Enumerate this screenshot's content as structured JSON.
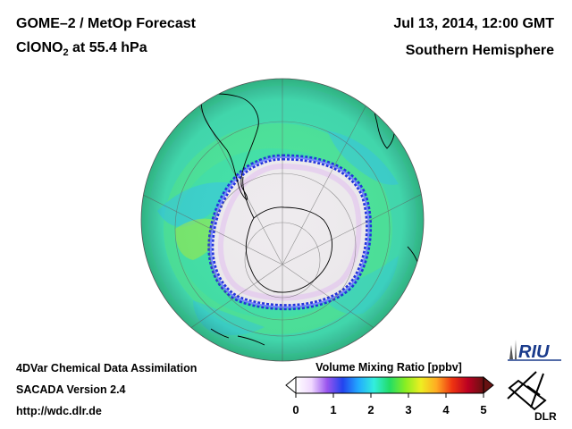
{
  "header": {
    "product": "GOME–2 / MetOp Forecast",
    "species": "ClONO",
    "species_subscript": "2",
    "level": " at 55.4 hPa",
    "datetime": "Jul 13, 2014, 12:00 GMT",
    "region": "Southern Hemisphere"
  },
  "footer": {
    "line1": "4DVar Chemical Data Assimilation",
    "line2": "SACADA Version 2.4",
    "line3": "http://wdc.dlr.de"
  },
  "colorbar": {
    "title": "Volume Mixing Ratio [ppbv]",
    "min": 0,
    "max": 5,
    "ticks": [
      "0",
      "1",
      "2",
      "3",
      "4",
      "5"
    ],
    "colors": [
      "#ffffff",
      "#f0d8ff",
      "#9955ee",
      "#2244ee",
      "#22aaff",
      "#33eedd",
      "#22dd66",
      "#88ee22",
      "#eeee22",
      "#ffaa22",
      "#ee3311",
      "#bb0022",
      "#661111"
    ]
  },
  "map": {
    "projection": "orthographic, south polar view",
    "field_colors": {
      "ocean_band": "#33e6a4",
      "vortex_edge": "#2233dd",
      "vortex_interior": "#eeebee",
      "coast": "#000000"
    }
  },
  "logos": {
    "riu": "RIU",
    "dlr": "DLR"
  }
}
